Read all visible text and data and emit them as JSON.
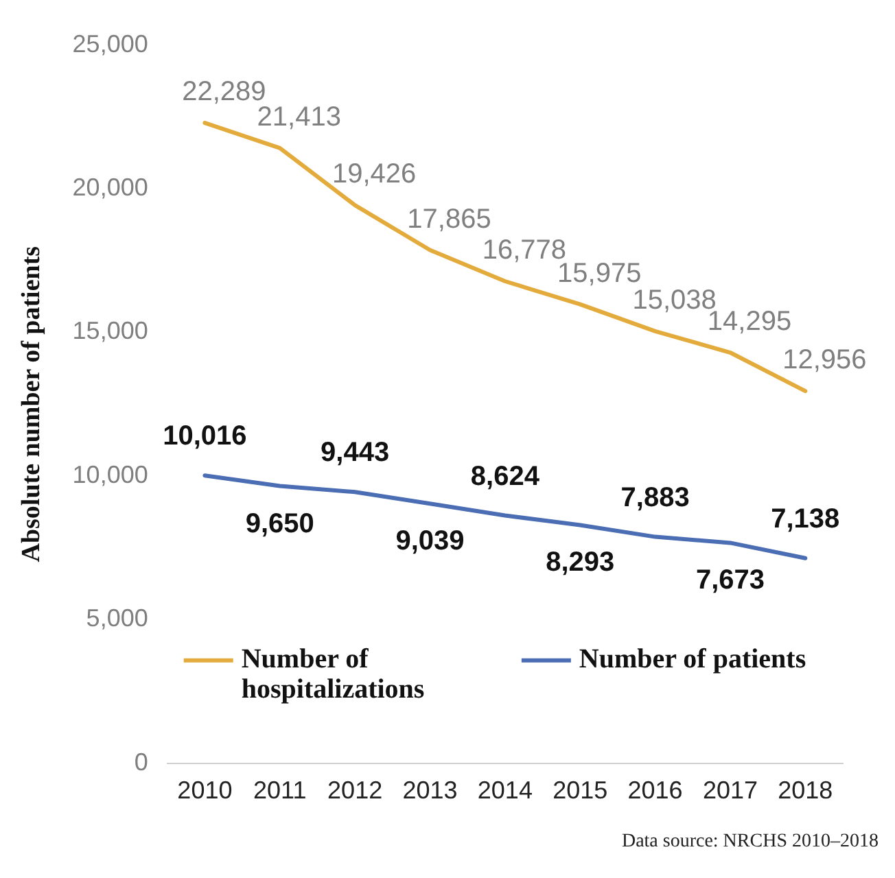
{
  "chart_data": {
    "type": "line",
    "ylabel": "Absolute number of patients",
    "categories": [
      "2010",
      "2011",
      "2012",
      "2013",
      "2014",
      "2015",
      "2016",
      "2017",
      "2018"
    ],
    "series": [
      {
        "name": "Number of hospitalizations",
        "color": "#e3ab3c",
        "values": [
          22289,
          21413,
          19426,
          17865,
          16778,
          15975,
          15038,
          14295,
          12956
        ],
        "value_labels": [
          "22,289",
          "21,413",
          "19,426",
          "17,865",
          "16,778",
          "15,975",
          "15,038",
          "14,295",
          "12,956"
        ]
      },
      {
        "name": "Number of patients",
        "color": "#4a6db4",
        "values": [
          10016,
          9650,
          9443,
          9039,
          8624,
          8293,
          7883,
          7673,
          7138
        ],
        "value_labels": [
          "10,016",
          "9,650",
          "9,443",
          "9,039",
          "8,624",
          "8,293",
          "7,883",
          "7,673",
          "7,138"
        ]
      }
    ],
    "ylim": [
      0,
      25000
    ],
    "yticks": [
      {
        "value": 0,
        "label": "0"
      },
      {
        "value": 5000,
        "label": "5,000"
      },
      {
        "value": 10000,
        "label": "10,000"
      },
      {
        "value": 15000,
        "label": "15,000"
      },
      {
        "value": 20000,
        "label": "20,000"
      },
      {
        "value": 25000,
        "label": "25,000"
      }
    ],
    "grid": false,
    "legend": "bottom",
    "marker": "none",
    "line_style": "solid",
    "annotations": [
      "Data source: NRCHS 2010–2018"
    ]
  }
}
